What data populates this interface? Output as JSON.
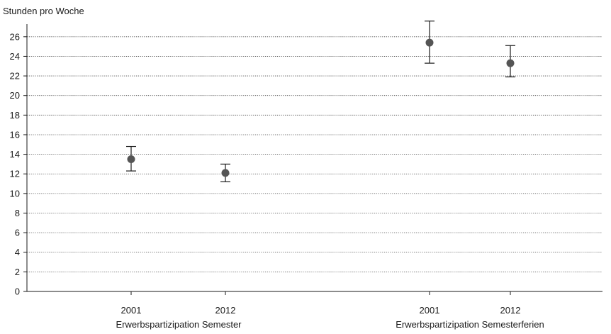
{
  "chart_data": {
    "type": "scatter",
    "title": "",
    "ylabel": "Stunden pro Woche",
    "xlabel": "",
    "ylim": [
      0,
      27
    ],
    "yticks": [
      0,
      2,
      4,
      6,
      8,
      10,
      12,
      14,
      16,
      18,
      20,
      22,
      24,
      26
    ],
    "grid": "horizontal dotted",
    "groups": [
      {
        "label": "Erwerbspartizipation Semester"
      },
      {
        "label": "Erwerbspartizipation Semesterferien"
      }
    ],
    "points": [
      {
        "group": 0,
        "x": "2001",
        "y": 13.5,
        "low": 12.3,
        "high": 14.8
      },
      {
        "group": 0,
        "x": "2012",
        "y": 12.1,
        "low": 11.2,
        "high": 13.0
      },
      {
        "group": 1,
        "x": "2001",
        "y": 25.4,
        "low": 23.3,
        "high": 27.6
      },
      {
        "group": 1,
        "x": "2012",
        "y": 23.3,
        "low": 21.9,
        "high": 25.1
      }
    ],
    "colors": {
      "marker": "#555555",
      "errorbar": "#1a1a1a",
      "axis": "#1a1a1a",
      "grid": "#444444"
    }
  }
}
